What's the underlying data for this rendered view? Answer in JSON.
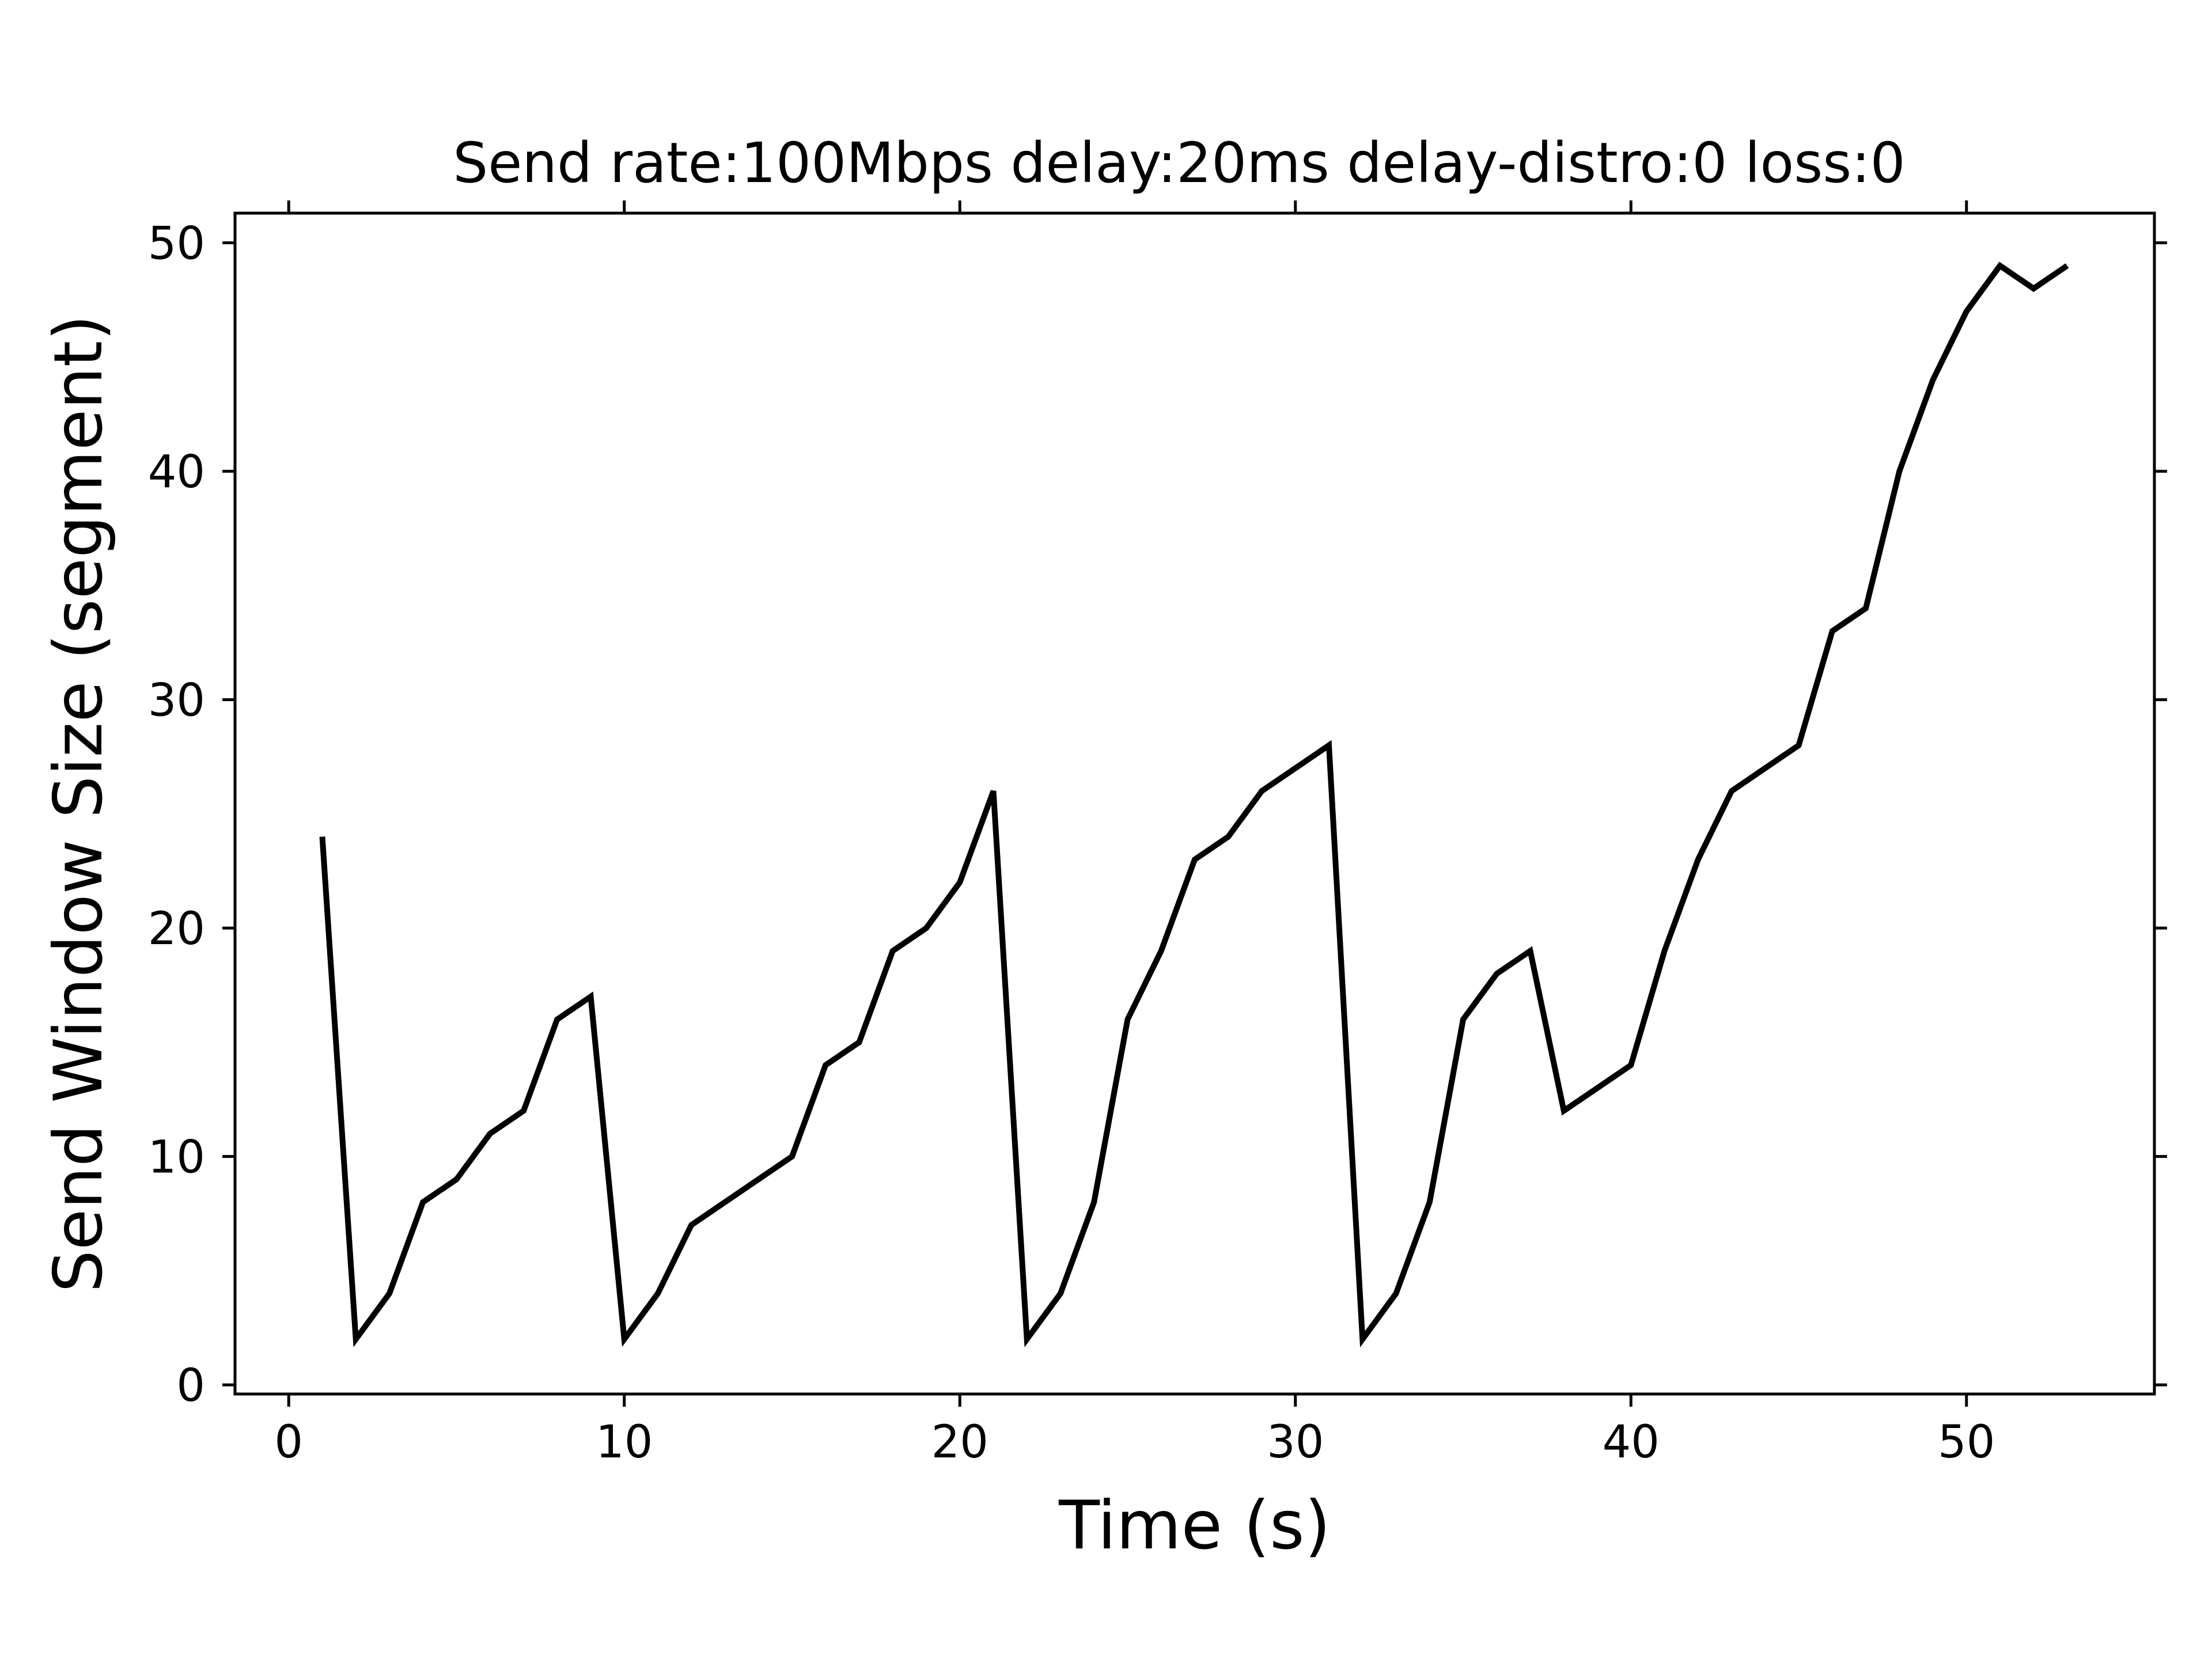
{
  "chart_data": {
    "type": "line",
    "title": "Send  rate:100Mbps delay:20ms delay-distro:0 loss:0",
    "xlabel": "Time (s)",
    "ylabel": "Send Window Size (segment)",
    "xlim": [
      -1.6,
      55.6
    ],
    "ylim": [
      -0.4,
      51.3
    ],
    "xticks": [
      0,
      10,
      20,
      30,
      40,
      50
    ],
    "yticks": [
      0,
      10,
      20,
      30,
      40,
      50
    ],
    "grid": false,
    "series": [
      {
        "color": "#000000",
        "x": [
          1,
          2,
          3,
          4,
          5,
          6,
          7,
          8,
          9,
          10,
          11,
          12,
          13,
          14,
          15,
          16,
          17,
          18,
          19,
          20,
          21,
          22,
          23,
          24,
          25,
          26,
          27,
          28,
          29,
          30,
          31,
          32,
          33,
          34,
          35,
          36,
          37,
          38,
          39,
          40,
          41,
          42,
          43,
          44,
          45,
          46,
          47,
          48,
          49,
          50,
          51,
          52,
          53
        ],
        "y": [
          24,
          2,
          4,
          8,
          9,
          11,
          12,
          16,
          17,
          2,
          4,
          7,
          8,
          9,
          10,
          14,
          15,
          19,
          20,
          22,
          26,
          2,
          4,
          8,
          16,
          19,
          23,
          24,
          26,
          27,
          28,
          2,
          4,
          8,
          16,
          18,
          19,
          12,
          13,
          14,
          19,
          23,
          26,
          27,
          28,
          33,
          34,
          40,
          44,
          47,
          49,
          48,
          49
        ]
      }
    ]
  }
}
